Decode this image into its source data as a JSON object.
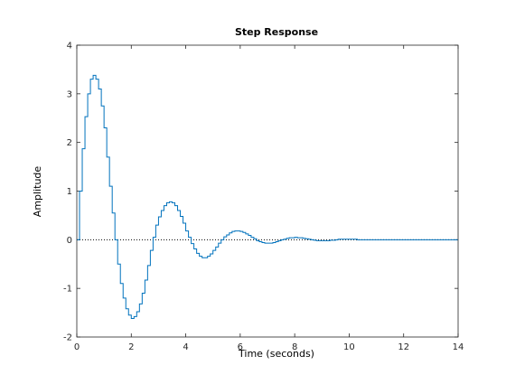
{
  "chart_data": {
    "type": "line",
    "style": "stairs",
    "title": "Step Response",
    "xlabel": "Time (seconds)",
    "ylabel": "Amplitude",
    "xlim": [
      0,
      14
    ],
    "ylim": [
      -2,
      4
    ],
    "xticks": [
      0,
      2,
      4,
      6,
      8,
      10,
      12,
      14
    ],
    "yticks": [
      -2,
      -1,
      0,
      1,
      2,
      3,
      4
    ],
    "grid": false,
    "reference_line": {
      "y": 0,
      "style": "dotted",
      "color": "#000000"
    },
    "line_color": "#0072BD",
    "sample_time": 0.1,
    "y": [
      0,
      1.0,
      1.87,
      2.53,
      3.0,
      3.3,
      3.38,
      3.3,
      3.1,
      2.75,
      2.3,
      1.7,
      1.1,
      0.55,
      0.0,
      -0.5,
      -0.9,
      -1.2,
      -1.42,
      -1.55,
      -1.62,
      -1.58,
      -1.48,
      -1.32,
      -1.1,
      -0.83,
      -0.53,
      -0.22,
      0.05,
      0.3,
      0.47,
      0.6,
      0.7,
      0.76,
      0.78,
      0.76,
      0.7,
      0.6,
      0.48,
      0.34,
      0.18,
      0.05,
      -0.08,
      -0.19,
      -0.28,
      -0.34,
      -0.37,
      -0.37,
      -0.34,
      -0.29,
      -0.22,
      -0.15,
      -0.07,
      0.0,
      0.06,
      0.1,
      0.14,
      0.17,
      0.18,
      0.18,
      0.17,
      0.15,
      0.12,
      0.09,
      0.05,
      0.02,
      -0.02,
      -0.04,
      -0.06,
      -0.07,
      -0.07,
      -0.07,
      -0.06,
      -0.04,
      -0.02,
      0.0,
      0.01,
      0.03,
      0.04,
      0.04,
      0.05,
      0.04,
      0.04,
      0.03,
      0.02,
      0.01,
      0.0,
      -0.01,
      -0.02,
      -0.02,
      -0.02,
      -0.02,
      -0.02,
      -0.01,
      -0.01,
      0.0,
      0.01,
      0.01,
      0.01,
      0.01,
      0.01,
      0.01,
      0.01,
      0.0,
      0.0,
      0.0,
      0.0,
      0.0,
      0.0,
      0.0,
      0.0,
      0.0,
      0.0,
      0.0,
      0.0,
      0.0,
      0.0,
      0.0,
      0.0,
      0.0,
      0.0,
      0.0,
      0.0,
      0.0,
      0.0,
      0.0,
      0.0,
      0.0,
      0.0,
      0.0,
      0.0,
      0.0,
      0.0,
      0.0,
      0.0,
      0.0,
      0.0,
      0.0,
      0.0,
      0.0
    ]
  }
}
